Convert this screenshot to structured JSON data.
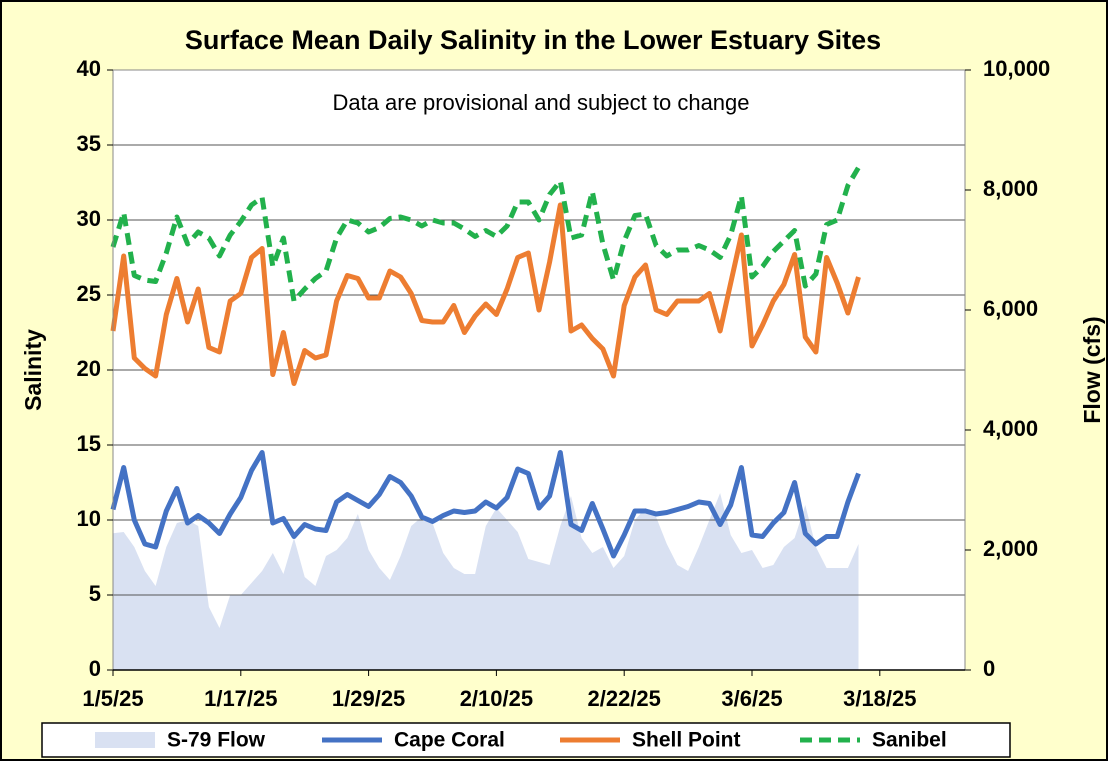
{
  "chart_data": {
    "type": "line",
    "title": "Surface Mean Daily Salinity in the Lower Estuary Sites",
    "annotation": "Data are provisional and subject to change",
    "y_label": "Salinity",
    "y2_label": "Flow (cfs)",
    "x": [
      "1/5/25",
      "1/6/25",
      "1/7/25",
      "1/8/25",
      "1/9/25",
      "1/10/25",
      "1/11/25",
      "1/12/25",
      "1/13/25",
      "1/14/25",
      "1/15/25",
      "1/16/25",
      "1/17/25",
      "1/18/25",
      "1/19/25",
      "1/20/25",
      "1/21/25",
      "1/22/25",
      "1/23/25",
      "1/24/25",
      "1/25/25",
      "1/26/25",
      "1/27/25",
      "1/28/25",
      "1/29/25",
      "1/30/25",
      "1/31/25",
      "2/1/25",
      "2/2/25",
      "2/3/25",
      "2/4/25",
      "2/5/25",
      "2/6/25",
      "2/7/25",
      "2/8/25",
      "2/9/25",
      "2/10/25",
      "2/11/25",
      "2/12/25",
      "2/13/25",
      "2/14/25",
      "2/15/25",
      "2/16/25",
      "2/17/25",
      "2/18/25",
      "2/19/25",
      "2/20/25",
      "2/21/25",
      "2/22/25",
      "2/23/25",
      "2/24/25",
      "2/25/25",
      "2/26/25",
      "2/27/25",
      "2/28/25",
      "3/1/25",
      "3/2/25",
      "3/3/25",
      "3/4/25",
      "3/5/25",
      "3/6/25",
      "3/7/25",
      "3/8/25",
      "3/9/25",
      "3/10/25",
      "3/11/25",
      "3/12/25",
      "3/13/25",
      "3/14/25",
      "3/15/25",
      "3/16/25"
    ],
    "xlim": [
      "1/5/25",
      "3/26/25"
    ],
    "xticks": [
      "1/5/25",
      "1/17/25",
      "1/29/25",
      "2/10/25",
      "2/22/25",
      "3/6/25",
      "3/18/25"
    ],
    "ylim": [
      0,
      40
    ],
    "yticks": [
      0,
      5,
      10,
      15,
      20,
      25,
      30,
      35,
      40
    ],
    "y2lim": [
      0,
      10000
    ],
    "y2ticks": [
      0,
      {
        "value": 2000,
        "label": "2,000"
      },
      {
        "value": 4000,
        "label": "4,000"
      },
      {
        "value": 6000,
        "label": "6,000"
      },
      {
        "value": 8000,
        "label": "8,000"
      },
      {
        "value": 10000,
        "label": "10,000"
      }
    ],
    "grid": true,
    "series": [
      {
        "name": "S-79 Flow",
        "color": "#d9e1f2",
        "kind": "area",
        "axis": "y2",
        "values": [
          2280,
          2300,
          2050,
          1650,
          1400,
          2050,
          2450,
          2500,
          2400,
          1050,
          700,
          1250,
          1250,
          1450,
          1650,
          1950,
          1600,
          2200,
          1550,
          1400,
          1900,
          2000,
          2200,
          2600,
          2000,
          1700,
          1500,
          1900,
          2400,
          2550,
          2450,
          1950,
          1700,
          1600,
          1600,
          2400,
          2700,
          2500,
          2300,
          1850,
          1800,
          1750,
          2400,
          2900,
          2200,
          1950,
          2050,
          1700,
          1900,
          2500,
          2700,
          2550,
          2100,
          1750,
          1650,
          2050,
          2500,
          2950,
          2250,
          1950,
          2000,
          1700,
          1750,
          2050,
          2200,
          2750,
          2050,
          1700,
          1700,
          1700,
          2100
        ]
      },
      {
        "name": "Cape Coral",
        "color": "#4472c4",
        "kind": "line",
        "values": [
          10.7,
          13.5,
          10,
          8.4,
          8.2,
          10.6,
          12.1,
          9.8,
          10.3,
          9.8,
          9.1,
          10.4,
          11.5,
          13.3,
          14.5,
          9.8,
          10.1,
          8.9,
          9.7,
          9.4,
          9.3,
          11.2,
          11.7,
          11.3,
          10.9,
          11.7,
          12.9,
          12.5,
          11.6,
          10.2,
          9.9,
          10.3,
          10.6,
          10.5,
          10.6,
          11.2,
          10.8,
          11.5,
          13.4,
          13.1,
          10.8,
          11.6,
          14.5,
          9.7,
          9.3,
          11.1,
          9.4,
          7.6,
          9.0,
          10.6,
          10.6,
          10.4,
          10.5,
          10.7,
          10.9,
          11.2,
          11.1,
          9.7,
          11.0,
          13.5,
          9.0,
          8.9,
          9.8,
          10.5,
          12.5,
          9.1,
          8.4,
          8.9,
          8.9,
          11.2,
          13.1
        ]
      },
      {
        "name": "Shell Point",
        "color": "#ed7d31",
        "kind": "line",
        "values": [
          22.6,
          27.6,
          20.8,
          20.1,
          19.6,
          23.7,
          26.1,
          23.2,
          25.4,
          21.5,
          21.2,
          24.6,
          25.1,
          27.5,
          28.1,
          19.7,
          22.5,
          19.1,
          21.3,
          20.8,
          21.0,
          24.6,
          26.3,
          26.1,
          24.8,
          24.8,
          26.6,
          26.2,
          25.1,
          23.3,
          23.2,
          23.2,
          24.3,
          22.5,
          23.6,
          24.4,
          23.7,
          25.4,
          27.5,
          27.8,
          24.0,
          27.2,
          31.0,
          22.6,
          23.0,
          22.1,
          21.4,
          19.6,
          24.3,
          26.2,
          27.0,
          24.0,
          23.7,
          24.6,
          24.6,
          24.6,
          25.1,
          22.6,
          25.8,
          29.0,
          21.6,
          23.0,
          24.6,
          25.7,
          27.7,
          22.2,
          21.2,
          27.5,
          25.8,
          23.8,
          26.2
        ]
      },
      {
        "name": "Sanibel",
        "color": "#22b14c",
        "kind": "dashed",
        "values": [
          28.2,
          30.5,
          26.3,
          26.0,
          25.9,
          27.8,
          30.2,
          28.4,
          29.2,
          28.8,
          27.6,
          29.0,
          29.9,
          31.0,
          31.5,
          26.9,
          28.8,
          24.6,
          25.4,
          26.1,
          26.6,
          28.8,
          30.0,
          29.8,
          29.2,
          29.5,
          30.1,
          30.2,
          30.0,
          29.6,
          30.0,
          29.8,
          29.8,
          29.4,
          28.9,
          29.3,
          28.9,
          29.6,
          31.2,
          31.2,
          30.0,
          31.7,
          32.6,
          28.8,
          29.0,
          31.9,
          28.4,
          26.0,
          28.6,
          30.3,
          30.4,
          28.3,
          27.6,
          28.0,
          28.0,
          28.3,
          28.0,
          27.5,
          29.0,
          31.6,
          26.2,
          26.9,
          27.9,
          28.6,
          29.3,
          25.6,
          26.4,
          29.7,
          30.0,
          32.3,
          33.5
        ]
      }
    ]
  }
}
